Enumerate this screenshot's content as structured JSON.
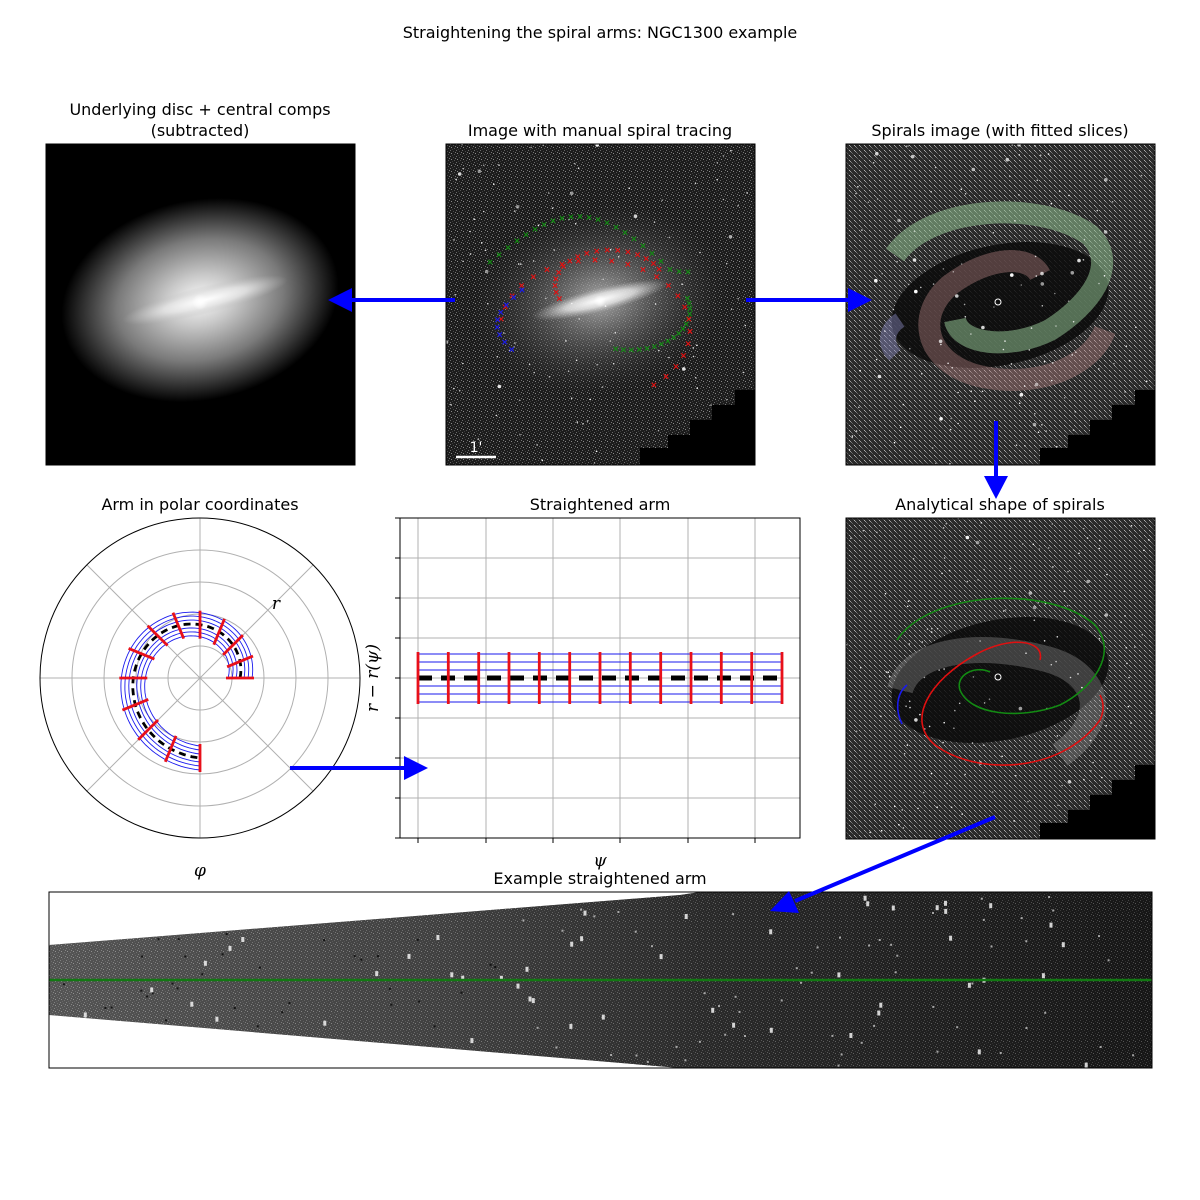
{
  "figure": {
    "title": "Straightening the spiral arms: NGC1300 example"
  },
  "panels": {
    "disc": {
      "title_line1": "Underlying disc + central comps",
      "title_line2": "(subtracted)"
    },
    "tracing": {
      "title": "Image with manual spiral tracing",
      "scale_label": "1'"
    },
    "spirals": {
      "title": "Spirals image (with fitted slices)"
    },
    "polar": {
      "title": "Arm in polar coordinates",
      "r_label": "r",
      "phi_label": "φ"
    },
    "straight": {
      "title": "Straightened arm",
      "x_label": "ψ",
      "y_label": "r − r(ψ)"
    },
    "analytical": {
      "title": "Analytical shape of spirals"
    },
    "example": {
      "title": "Example straightened arm"
    }
  },
  "colors": {
    "arrow": "#0000ff",
    "arm_green": "#138a13",
    "arm_red": "#e01010",
    "arm_blue": "#1a1aee",
    "slice_red": "#e8101a",
    "center_line": "#127812"
  },
  "arrows": [
    "tracing-to-disc",
    "tracing-to-spirals",
    "spirals-to-analytical",
    "polar-to-straightened",
    "analytical-to-example"
  ]
}
